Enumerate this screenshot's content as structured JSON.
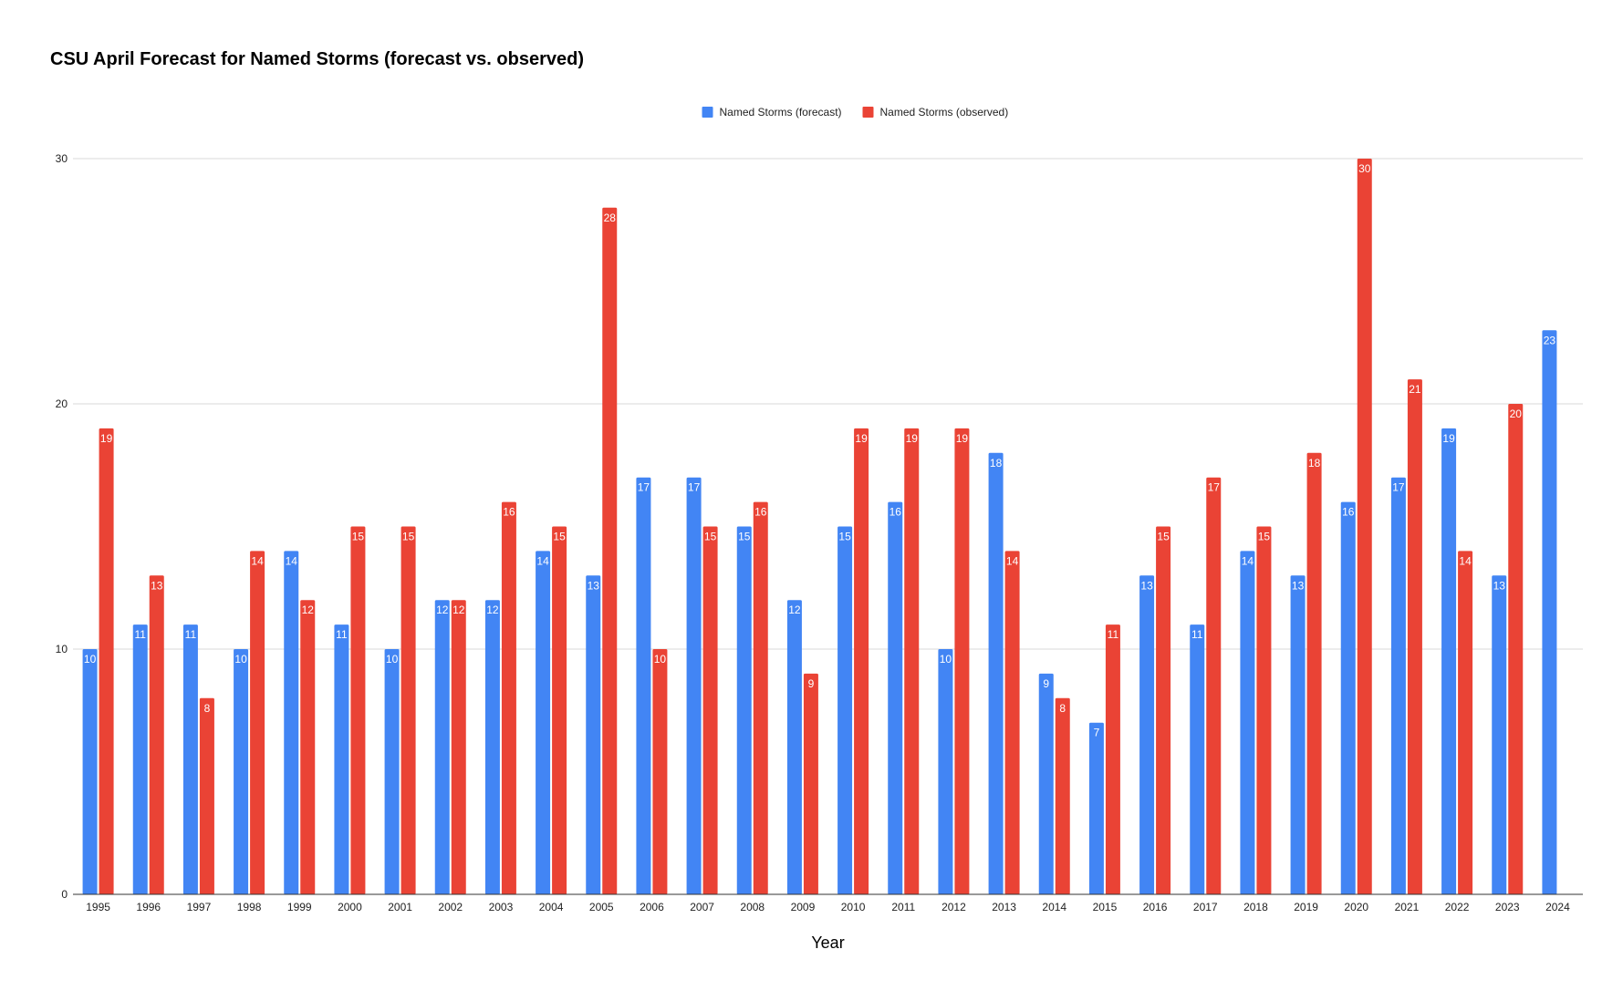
{
  "chart_data": {
    "type": "bar",
    "title": "CSU April Forecast for Named Storms (forecast vs. observed)",
    "xlabel": "Year",
    "ylabel": "",
    "ylim": [
      0,
      30
    ],
    "yticks": [
      0,
      10,
      20,
      30
    ],
    "grid": true,
    "legend_position": "top-center",
    "categories": [
      "1995",
      "1996",
      "1997",
      "1998",
      "1999",
      "2000",
      "2001",
      "2002",
      "2003",
      "2004",
      "2005",
      "2006",
      "2007",
      "2008",
      "2009",
      "2010",
      "2011",
      "2012",
      "2013",
      "2014",
      "2015",
      "2016",
      "2017",
      "2018",
      "2019",
      "2020",
      "2021",
      "2022",
      "2023",
      "2024"
    ],
    "series": [
      {
        "name": "Named Storms (forecast)",
        "color": "#4285f4",
        "values": [
          10,
          11,
          11,
          10,
          14,
          11,
          10,
          12,
          12,
          14,
          13,
          17,
          17,
          15,
          12,
          15,
          16,
          10,
          18,
          9,
          7,
          13,
          11,
          14,
          13,
          16,
          17,
          19,
          13,
          23
        ]
      },
      {
        "name": "Named Storms (observed)",
        "color": "#ea4335",
        "values": [
          19,
          13,
          8,
          14,
          12,
          15,
          15,
          12,
          16,
          15,
          28,
          10,
          15,
          16,
          9,
          19,
          19,
          19,
          14,
          8,
          11,
          15,
          17,
          15,
          18,
          30,
          21,
          14,
          20,
          null
        ]
      }
    ]
  }
}
